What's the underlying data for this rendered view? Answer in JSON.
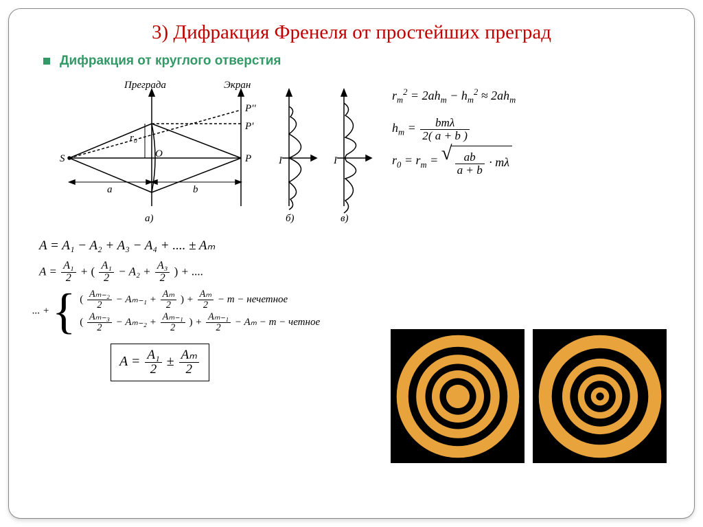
{
  "title": "3) Дифракция Френеля от простейших преград",
  "subtitle": "Дифракция от круглого отверстия",
  "colors": {
    "title": "#c00000",
    "subtitle": "#339966",
    "ring_fill": "#e8a33d",
    "ring_bg": "#000000",
    "frame_border": "#888888"
  },
  "diagram": {
    "labels": {
      "barrier": "Преграда",
      "screen": "Экран",
      "S": "S",
      "P": "P",
      "P1": "P'",
      "P2": "P''",
      "a": "a",
      "b": "b",
      "r0": "r₀",
      "O": "O",
      "sub_a": "а)",
      "sub_b": "б)",
      "sub_v": "в)",
      "I": "I"
    }
  },
  "equations_right": {
    "eq1_lhs": "r",
    "eq1_sub": "m",
    "eq1_sup": "2",
    "eq1_rhs_a": "2ah",
    "eq1_rhs_b": "h",
    "eq1_approx": "2ah",
    "eq2_lhs": "h",
    "eq2_rhs_num": "bmλ",
    "eq2_rhs_den": "2( a + b )",
    "eq3_lhs_a": "r",
    "eq3_sub0": "0",
    "eq3_lhs_b": "r",
    "eq3_sqrt_num": "ab",
    "eq3_sqrt_den": "a + b",
    "eq3_tail": "· mλ"
  },
  "equations_mid": {
    "m1": "A = A₁ − A₂ + A₃ − A₄ + .... ± Aₘ",
    "m2_pre": "A = ",
    "m2_f1n": "A₁",
    "m2_f1d": "2",
    "m2_plus": " + ",
    "m2_f2n": "A₁",
    "m2_f2d": "2",
    "m2_mid": " − A₂ + ",
    "m2_f3n": "A₃",
    "m2_f3d": "2",
    "m2_tail": " + ...."
  },
  "brace": {
    "prefix": "... + ",
    "row1_a_n": "Aₘ₋₂",
    "row1_a_d": "2",
    "row1_mid1": " − Aₘ₋₁ + ",
    "row1_b_n": "Aₘ",
    "row1_b_d": "2",
    "row1_plus": " + ",
    "row1_c_n": "Aₘ",
    "row1_c_d": "2",
    "row1_tail": " − m − нечетное",
    "row2_a_n": "Aₘ₋₃",
    "row2_a_d": "2",
    "row2_mid1": " − Aₘ₋₂ + ",
    "row2_b_n": "Aₘ₋₁",
    "row2_b_d": "2",
    "row2_plus": " + ",
    "row2_c_n": "Aₘ₋₁",
    "row2_c_d": "2",
    "row2_tail": " − Aₘ − m − четное"
  },
  "boxed": {
    "lhs": "A = ",
    "f1n": "A₁",
    "f1d": "2",
    "pm": " ± ",
    "f2n": "Aₘ",
    "f2d": "2"
  },
  "rings": {
    "left": {
      "type": "concentric-rings-bright-center",
      "radii": [
        18,
        28,
        40,
        50,
        64,
        76,
        94
      ],
      "fill": "#e8a33d",
      "bg": "#000000"
    },
    "right": {
      "type": "concentric-rings-dark-center",
      "radii": [
        6,
        14,
        24,
        34,
        46,
        58,
        74,
        94
      ],
      "fill": "#e8a33d",
      "bg": "#000000"
    }
  }
}
